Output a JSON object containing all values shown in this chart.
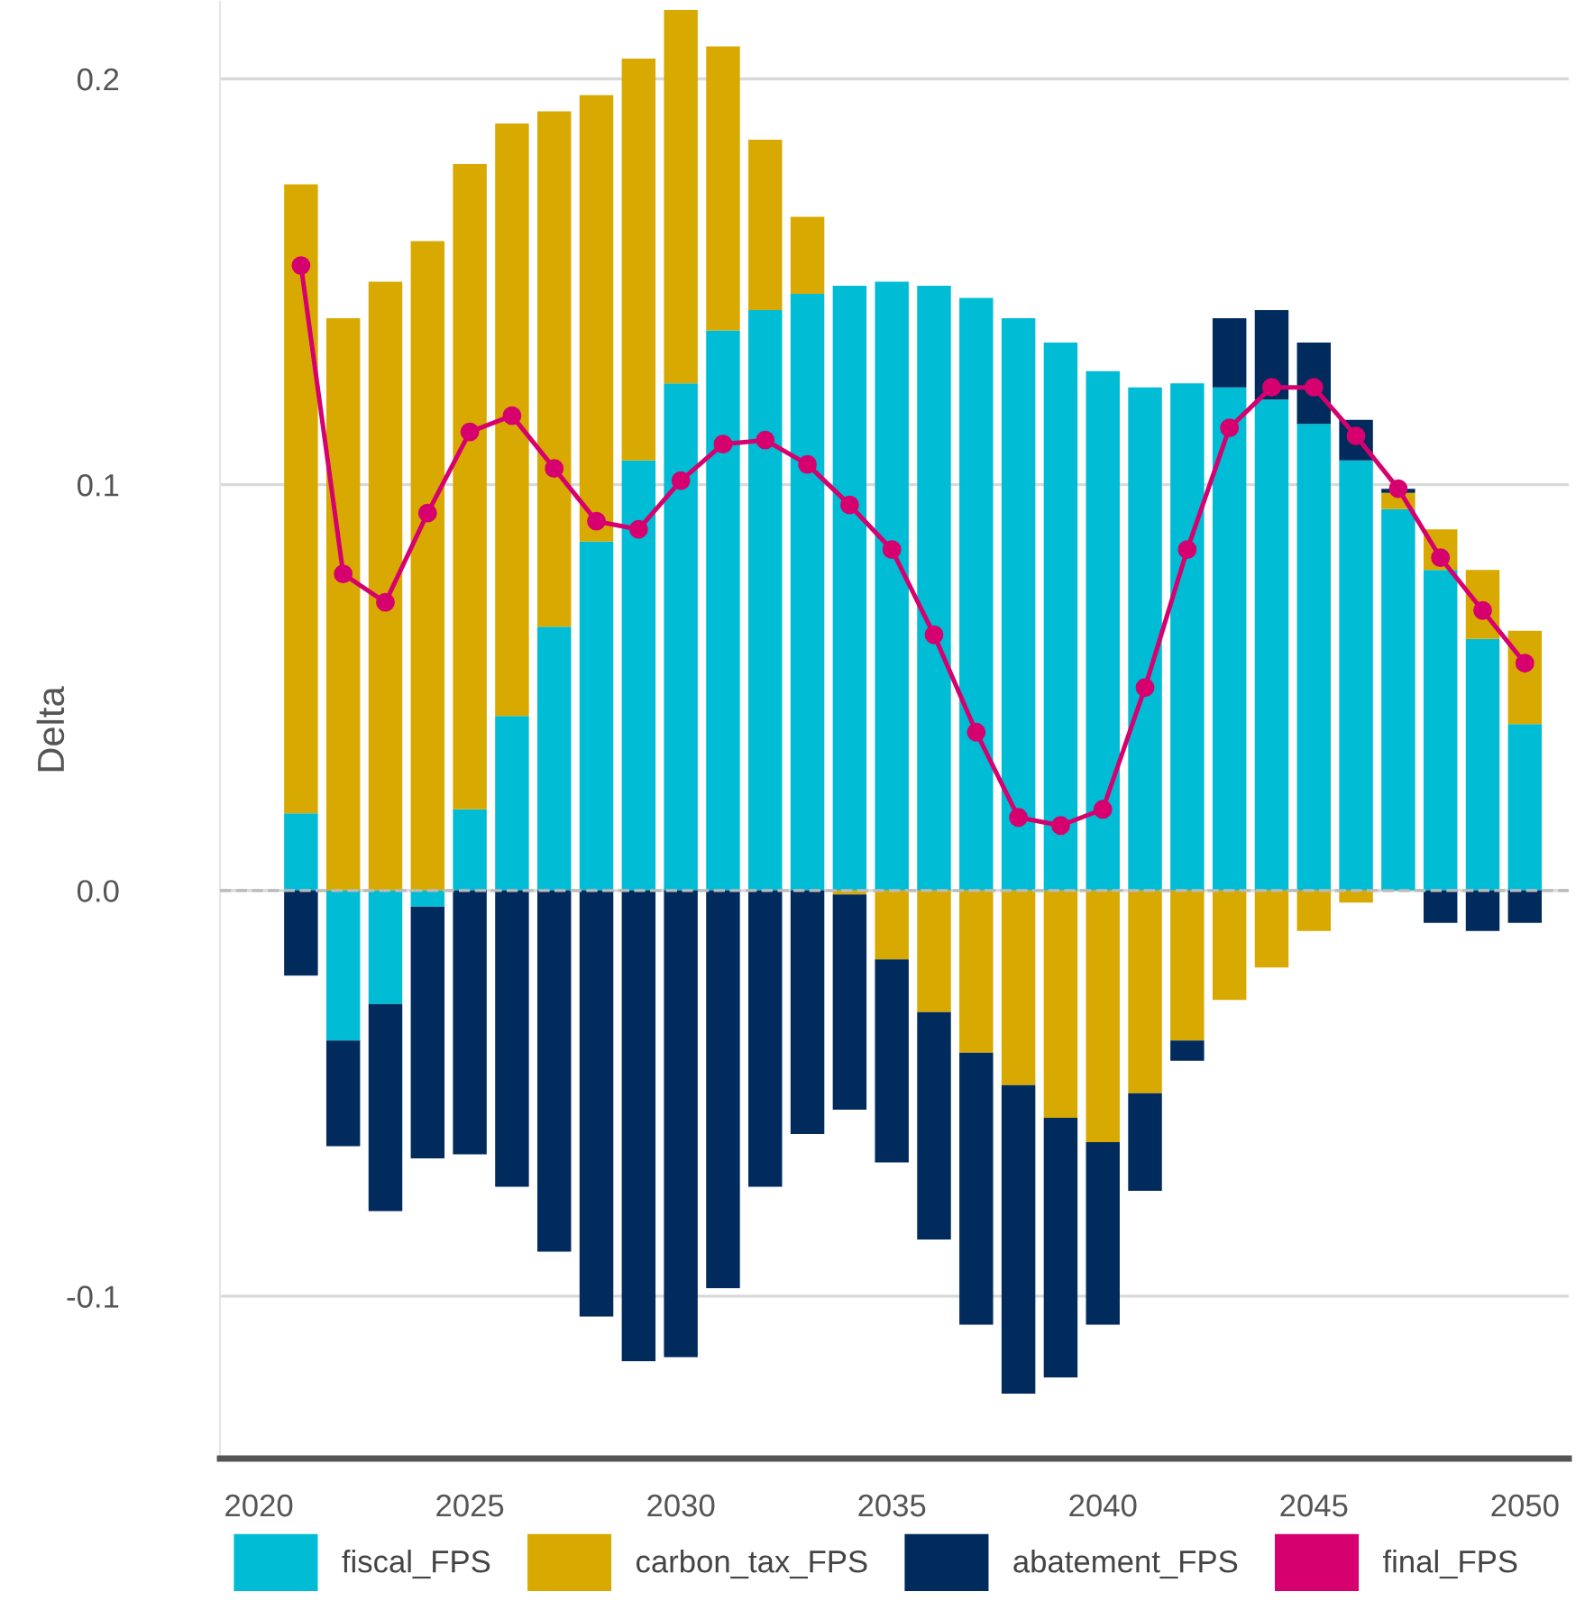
{
  "chart_data": {
    "type": "bar",
    "stacked": true,
    "ylabel": "Delta",
    "x": [
      2021,
      2022,
      2023,
      2024,
      2025,
      2026,
      2027,
      2028,
      2029,
      2030,
      2031,
      2032,
      2033,
      2034,
      2035,
      2036,
      2037,
      2038,
      2039,
      2040,
      2041,
      2042,
      2043,
      2044,
      2045,
      2046,
      2047,
      2048,
      2049,
      2050
    ],
    "series": [
      {
        "name": "fiscal_FPS",
        "color": "#00bcd4",
        "values": [
          0.019,
          -0.037,
          -0.028,
          -0.004,
          0.02,
          0.043,
          0.065,
          0.086,
          0.106,
          0.125,
          0.138,
          0.143,
          0.147,
          0.149,
          0.15,
          0.149,
          0.146,
          0.141,
          0.135,
          0.128,
          0.124,
          0.125,
          0.124,
          0.121,
          0.115,
          0.106,
          0.094,
          0.079,
          0.062,
          0.041
        ]
      },
      {
        "name": "carbon_tax_FPS",
        "color": "#d8a900",
        "values": [
          0.155,
          0.141,
          0.15,
          0.16,
          0.159,
          0.146,
          0.127,
          0.11,
          0.099,
          0.092,
          0.07,
          0.042,
          0.019,
          -0.001,
          -0.017,
          -0.03,
          -0.04,
          -0.048,
          -0.056,
          -0.062,
          -0.05,
          -0.037,
          -0.027,
          -0.019,
          -0.01,
          -0.003,
          0.004,
          0.01,
          0.017,
          0.023
        ]
      },
      {
        "name": "abatement_FPS",
        "color": "#002b5c",
        "values": [
          -0.021,
          -0.026,
          -0.051,
          -0.062,
          -0.065,
          -0.073,
          -0.089,
          -0.105,
          -0.116,
          -0.115,
          -0.098,
          -0.073,
          -0.06,
          -0.053,
          -0.05,
          -0.056,
          -0.067,
          -0.076,
          -0.064,
          -0.045,
          -0.024,
          -0.005,
          0.017,
          0.022,
          0.02,
          0.01,
          0.001,
          -0.008,
          -0.01,
          -0.008
        ]
      },
      {
        "name": "final_FPS",
        "type": "line",
        "color": "#d6006f",
        "marker": "circle",
        "values": [
          0.154,
          0.078,
          0.071,
          0.093,
          0.113,
          0.117,
          0.104,
          0.091,
          0.089,
          0.101,
          0.11,
          0.111,
          0.105,
          0.095,
          0.084,
          0.063,
          0.039,
          0.018,
          0.016,
          0.02,
          0.05,
          0.084,
          0.114,
          0.124,
          0.124,
          0.112,
          0.099,
          0.082,
          0.069,
          0.056
        ]
      }
    ],
    "xlim": [
      2019.08,
      2051.04
    ],
    "xticks": [
      2020,
      2025,
      2030,
      2035,
      2040,
      2045,
      2050
    ],
    "ylim": [
      -0.14,
      0.219
    ],
    "yticks": [
      {
        "value": -0.1,
        "label": "-0.1"
      },
      {
        "value": 0,
        "label": "0.0"
      },
      {
        "value": 0.1,
        "label": "0.1"
      },
      {
        "value": 0.2,
        "label": "0.2"
      }
    ],
    "ref_lines": [
      {
        "axis": "y",
        "value": 0,
        "color": "#bbbbbb",
        "line_style": "dashed"
      }
    ],
    "grid": "y",
    "legend": "bottom"
  }
}
